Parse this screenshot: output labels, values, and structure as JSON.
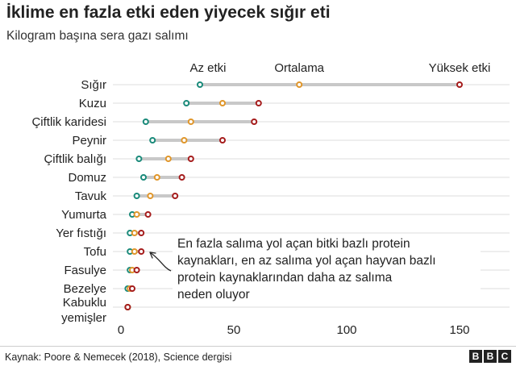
{
  "title": "İklime en fazla etki eden yiyecek sığır eti",
  "subtitle": "Kilogram başına sera gazı salımı",
  "source": "Kaynak: Poore & Nemecek (2018), Science dergisi",
  "brand": [
    "B",
    "B",
    "C"
  ],
  "colors": {
    "low": "#1a8a7a",
    "avg": "#e0962a",
    "high": "#a51c1c",
    "range": "#c8c8c8",
    "grid": "#dddddd",
    "text": "#222222"
  },
  "chart_data": {
    "type": "dot-range",
    "legend": {
      "low": "Az etki",
      "avg": "Ortalama",
      "high": "Yüksek etki"
    },
    "xlim": [
      0,
      170
    ],
    "xticks": [
      0,
      50,
      100,
      150
    ],
    "grid": true,
    "rows": [
      {
        "name": "Sığır",
        "low": 35,
        "avg": 79,
        "high": 150
      },
      {
        "name": "Kuzu",
        "low": 29,
        "avg": 45,
        "high": 61
      },
      {
        "name": "Çiftlik karidesi",
        "low": 11,
        "avg": 31,
        "high": 59
      },
      {
        "name": "Peynir",
        "low": 14,
        "avg": 28,
        "high": 45
      },
      {
        "name": "Çiftlik balığı",
        "low": 8,
        "avg": 21,
        "high": 31
      },
      {
        "name": "Domuz",
        "low": 10,
        "avg": 16,
        "high": 27
      },
      {
        "name": "Tavuk",
        "low": 7,
        "avg": 13,
        "high": 24
      },
      {
        "name": "Yumurta",
        "low": 5,
        "avg": 7,
        "high": 12
      },
      {
        "name": "Yer fıstığı",
        "low": 4,
        "avg": 6,
        "high": 9
      },
      {
        "name": "Tofu",
        "low": 4,
        "avg": 6,
        "high": 9
      },
      {
        "name": "Fasulye",
        "low": 4,
        "avg": 5,
        "high": 7
      },
      {
        "name": "Bezelye",
        "low": 3,
        "avg": 4,
        "high": 5
      },
      {
        "name": "Kabuklu yemişler",
        "lines": [
          "Kabuklu",
          "yemişler"
        ],
        "low": 3,
        "avg": 3,
        "high": 3
      }
    ],
    "annotation": {
      "lines": [
        "En fazla salıma yol açan bitki bazlı protein",
        "kaynakları, en az salıma yol açan hayvan bazlı",
        "protein kaynaklarından daha az salıma",
        "neden oluyor"
      ]
    }
  }
}
